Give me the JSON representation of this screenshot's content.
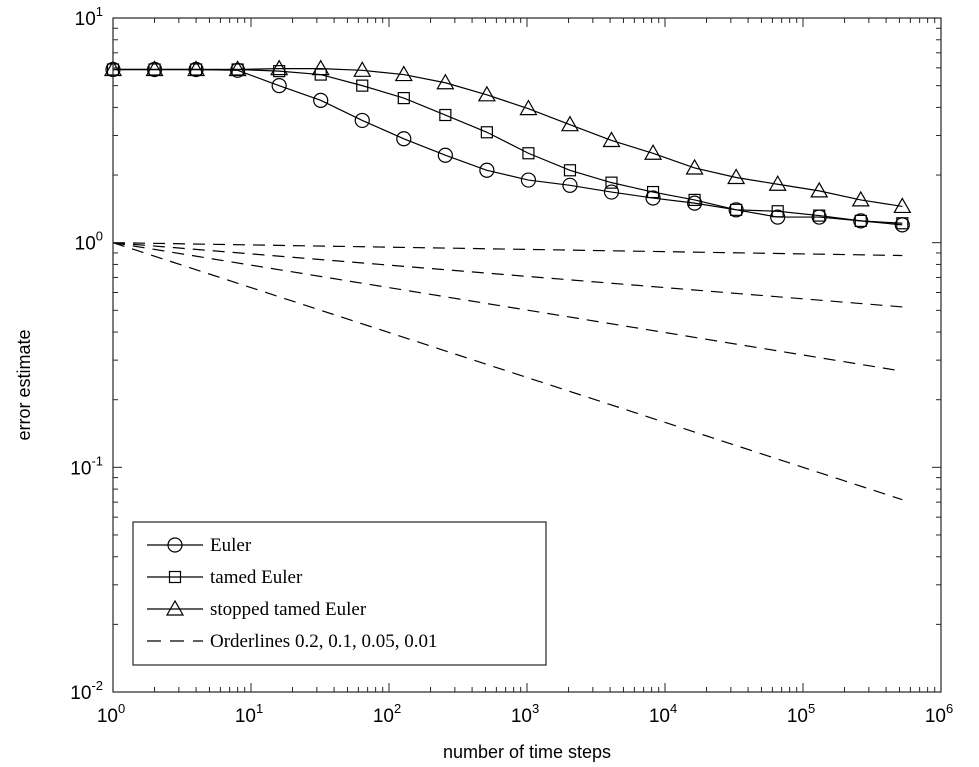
{
  "chart_data": {
    "type": "line",
    "xlabel": "number of time steps",
    "ylabel": "error estimate",
    "xscale": "log",
    "yscale": "log",
    "xlim": [
      1,
      1000000
    ],
    "ylim": [
      0.01,
      10
    ],
    "x_ticks": [
      {
        "base": "10",
        "exp": "0"
      },
      {
        "base": "10",
        "exp": "1"
      },
      {
        "base": "10",
        "exp": "2"
      },
      {
        "base": "10",
        "exp": "3"
      },
      {
        "base": "10",
        "exp": "4"
      },
      {
        "base": "10",
        "exp": "5"
      },
      {
        "base": "10",
        "exp": "6"
      }
    ],
    "y_ticks": [
      {
        "base": "10",
        "exp": "-2"
      },
      {
        "base": "10",
        "exp": "-1"
      },
      {
        "base": "10",
        "exp": "0"
      },
      {
        "base": "10",
        "exp": "1"
      }
    ],
    "grid": false,
    "legend_position": "bottom-left",
    "x": [
      1,
      2,
      4,
      8,
      16,
      32,
      64,
      128,
      256,
      512,
      1024,
      2048,
      4096,
      8192,
      16384,
      32768,
      65536,
      131072,
      262144,
      524288
    ],
    "series": [
      {
        "name": "Euler",
        "marker": "circle",
        "line": "solid",
        "values": [
          5.9,
          5.9,
          5.9,
          5.85,
          5.0,
          4.3,
          3.5,
          2.9,
          2.45,
          2.1,
          1.9,
          1.8,
          1.68,
          1.58,
          1.5,
          1.4,
          1.3,
          1.3,
          1.25,
          1.2
        ]
      },
      {
        "name": "tamed Euler",
        "marker": "square",
        "line": "solid",
        "values": [
          5.9,
          5.9,
          5.9,
          5.9,
          5.8,
          5.6,
          5.0,
          4.4,
          3.7,
          3.1,
          2.5,
          2.1,
          1.85,
          1.68,
          1.55,
          1.4,
          1.38,
          1.32,
          1.25,
          1.22
        ]
      },
      {
        "name": "stopped tamed Euler",
        "marker": "triangle",
        "line": "solid",
        "values": [
          5.9,
          5.9,
          5.9,
          5.9,
          5.95,
          5.95,
          5.85,
          5.6,
          5.15,
          4.55,
          3.95,
          3.35,
          2.85,
          2.5,
          2.15,
          1.95,
          1.82,
          1.7,
          1.55,
          1.45
        ]
      },
      {
        "name": "Orderlines 0.2, 0.1, 0.05, 0.01",
        "marker": "none",
        "line": "dashed",
        "orders": [
          0.2,
          0.1,
          0.05,
          0.01
        ],
        "x_range": [
          1,
          524288
        ],
        "y_start": 1
      }
    ]
  }
}
